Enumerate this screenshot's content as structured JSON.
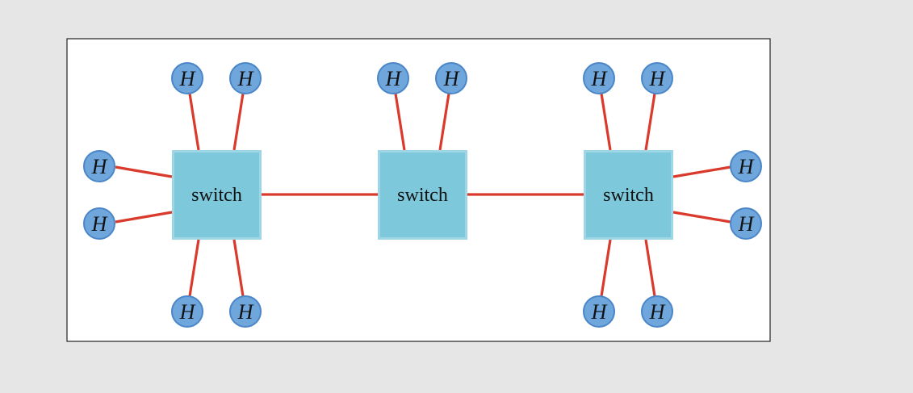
{
  "colors": {
    "background": "#e6e6e6",
    "panel": "#ffffff",
    "panel_border": "#222222",
    "switch_fill": "#7ec8dc",
    "switch_border": "#9fd6e6",
    "host_fill": "#6fa6dc",
    "host_border": "#4a86c8",
    "link": "#d93a2b",
    "text": "#111111"
  },
  "diagram": {
    "switches": [
      {
        "id": "s1",
        "label": "switch"
      },
      {
        "id": "s2",
        "label": "switch"
      },
      {
        "id": "s3",
        "label": "switch"
      }
    ],
    "hosts": [
      {
        "id": "h1",
        "label": "H",
        "attached_to": "s1"
      },
      {
        "id": "h2",
        "label": "H",
        "attached_to": "s1"
      },
      {
        "id": "h3",
        "label": "H",
        "attached_to": "s1"
      },
      {
        "id": "h4",
        "label": "H",
        "attached_to": "s1"
      },
      {
        "id": "h5",
        "label": "H",
        "attached_to": "s1"
      },
      {
        "id": "h6",
        "label": "H",
        "attached_to": "s1"
      },
      {
        "id": "h7",
        "label": "H",
        "attached_to": "s2"
      },
      {
        "id": "h8",
        "label": "H",
        "attached_to": "s2"
      },
      {
        "id": "h9",
        "label": "H",
        "attached_to": "s3"
      },
      {
        "id": "h10",
        "label": "H",
        "attached_to": "s3"
      },
      {
        "id": "h11",
        "label": "H",
        "attached_to": "s3"
      },
      {
        "id": "h12",
        "label": "H",
        "attached_to": "s3"
      },
      {
        "id": "h13",
        "label": "H",
        "attached_to": "s3"
      },
      {
        "id": "h14",
        "label": "H",
        "attached_to": "s3"
      }
    ],
    "switch_links": [
      {
        "from": "s1",
        "to": "s2"
      },
      {
        "from": "s2",
        "to": "s3"
      }
    ]
  }
}
